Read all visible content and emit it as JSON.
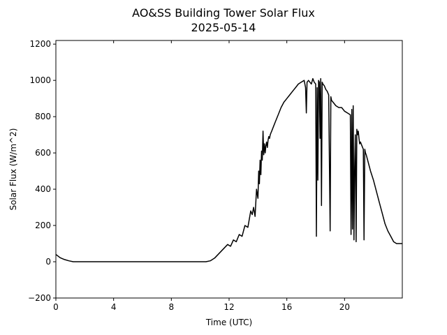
{
  "chart_data": {
    "type": "line",
    "title": "AO&SS Building Tower Solar Flux",
    "subtitle": "2025-05-14",
    "xlabel": "Time (UTC)",
    "ylabel": "Solar Flux (W/m^2)",
    "xlim": [
      0,
      24
    ],
    "ylim": [
      -200,
      1220
    ],
    "x_ticks": [
      0,
      4,
      8,
      12,
      16,
      20
    ],
    "x_tick_labels": [
      "0",
      "4",
      "8",
      "12",
      "16",
      "20"
    ],
    "y_ticks": [
      -200,
      0,
      200,
      400,
      600,
      800,
      1000,
      1200
    ],
    "y_tick_labels": [
      "−200",
      "0",
      "200",
      "400",
      "600",
      "800",
      "1000",
      "1200"
    ],
    "grid": false,
    "line_color": "#000000",
    "series": [
      {
        "x": [
          0.0,
          0.3,
          0.6,
          0.9,
          1.2,
          2,
          3,
          4,
          5,
          6,
          7,
          8,
          9,
          10,
          10.4,
          10.7,
          11.0,
          11.3,
          11.6,
          11.9,
          12.1,
          12.3,
          12.5,
          12.7,
          12.9,
          13.1,
          13.3,
          13.5,
          13.6,
          13.7,
          13.8,
          13.9,
          14.0,
          14.05,
          14.1,
          14.15,
          14.2,
          14.25,
          14.3,
          14.35,
          14.4,
          14.45,
          14.5,
          14.55,
          14.6,
          14.65,
          14.7,
          14.75,
          14.8,
          14.85,
          14.9,
          14.95,
          15.0,
          15.2,
          15.4,
          15.6,
          15.8,
          16.0,
          16.2,
          16.4,
          16.6,
          16.8,
          17.0,
          17.2,
          17.3,
          17.35,
          17.4,
          17.5,
          17.6,
          17.7,
          17.8,
          17.9,
          18.0,
          18.05,
          18.1,
          18.15,
          18.2,
          18.25,
          18.3,
          18.35,
          18.4,
          18.45,
          18.5,
          18.6,
          18.7,
          18.8,
          18.9,
          19.0,
          19.05,
          19.1,
          19.2,
          19.4,
          19.6,
          19.8,
          20.0,
          20.2,
          20.4,
          20.45,
          20.5,
          20.55,
          20.6,
          20.65,
          20.7,
          20.75,
          20.8,
          20.85,
          20.9,
          20.95,
          21.0,
          21.05,
          21.1,
          21.2,
          21.3,
          21.35,
          21.4,
          21.45,
          21.5,
          21.6,
          21.8,
          22.0,
          22.2,
          22.4,
          22.6,
          22.8,
          23.0,
          23.2,
          23.4,
          23.6,
          23.8,
          24.0
        ],
        "y": [
          40,
          22,
          12,
          5,
          0,
          0,
          0,
          0,
          0,
          0,
          0,
          0,
          0,
          0,
          0,
          5,
          20,
          45,
          70,
          95,
          85,
          120,
          110,
          150,
          140,
          200,
          190,
          280,
          260,
          300,
          250,
          400,
          350,
          500,
          430,
          560,
          480,
          610,
          560,
          720,
          590,
          650,
          600,
          640,
          660,
          630,
          670,
          690,
          680,
          700,
          710,
          720,
          730,
          770,
          810,
          850,
          880,
          900,
          920,
          940,
          960,
          980,
          990,
          1000,
          960,
          820,
          990,
          1000,
          990,
          980,
          1010,
          990,
          980,
          140,
          960,
          450,
          1000,
          990,
          680,
          1010,
          310,
          990,
          980,
          970,
          950,
          940,
          920,
          170,
          910,
          890,
          880,
          860,
          850,
          850,
          830,
          820,
          810,
          150,
          840,
          180,
          860,
          120,
          520,
          700,
          110,
          730,
          700,
          720,
          680,
          650,
          660,
          640,
          620,
          120,
          620,
          600,
          590,
          560,
          500,
          450,
          390,
          330,
          270,
          210,
          170,
          140,
          110,
          100,
          100,
          100
        ]
      }
    ]
  }
}
